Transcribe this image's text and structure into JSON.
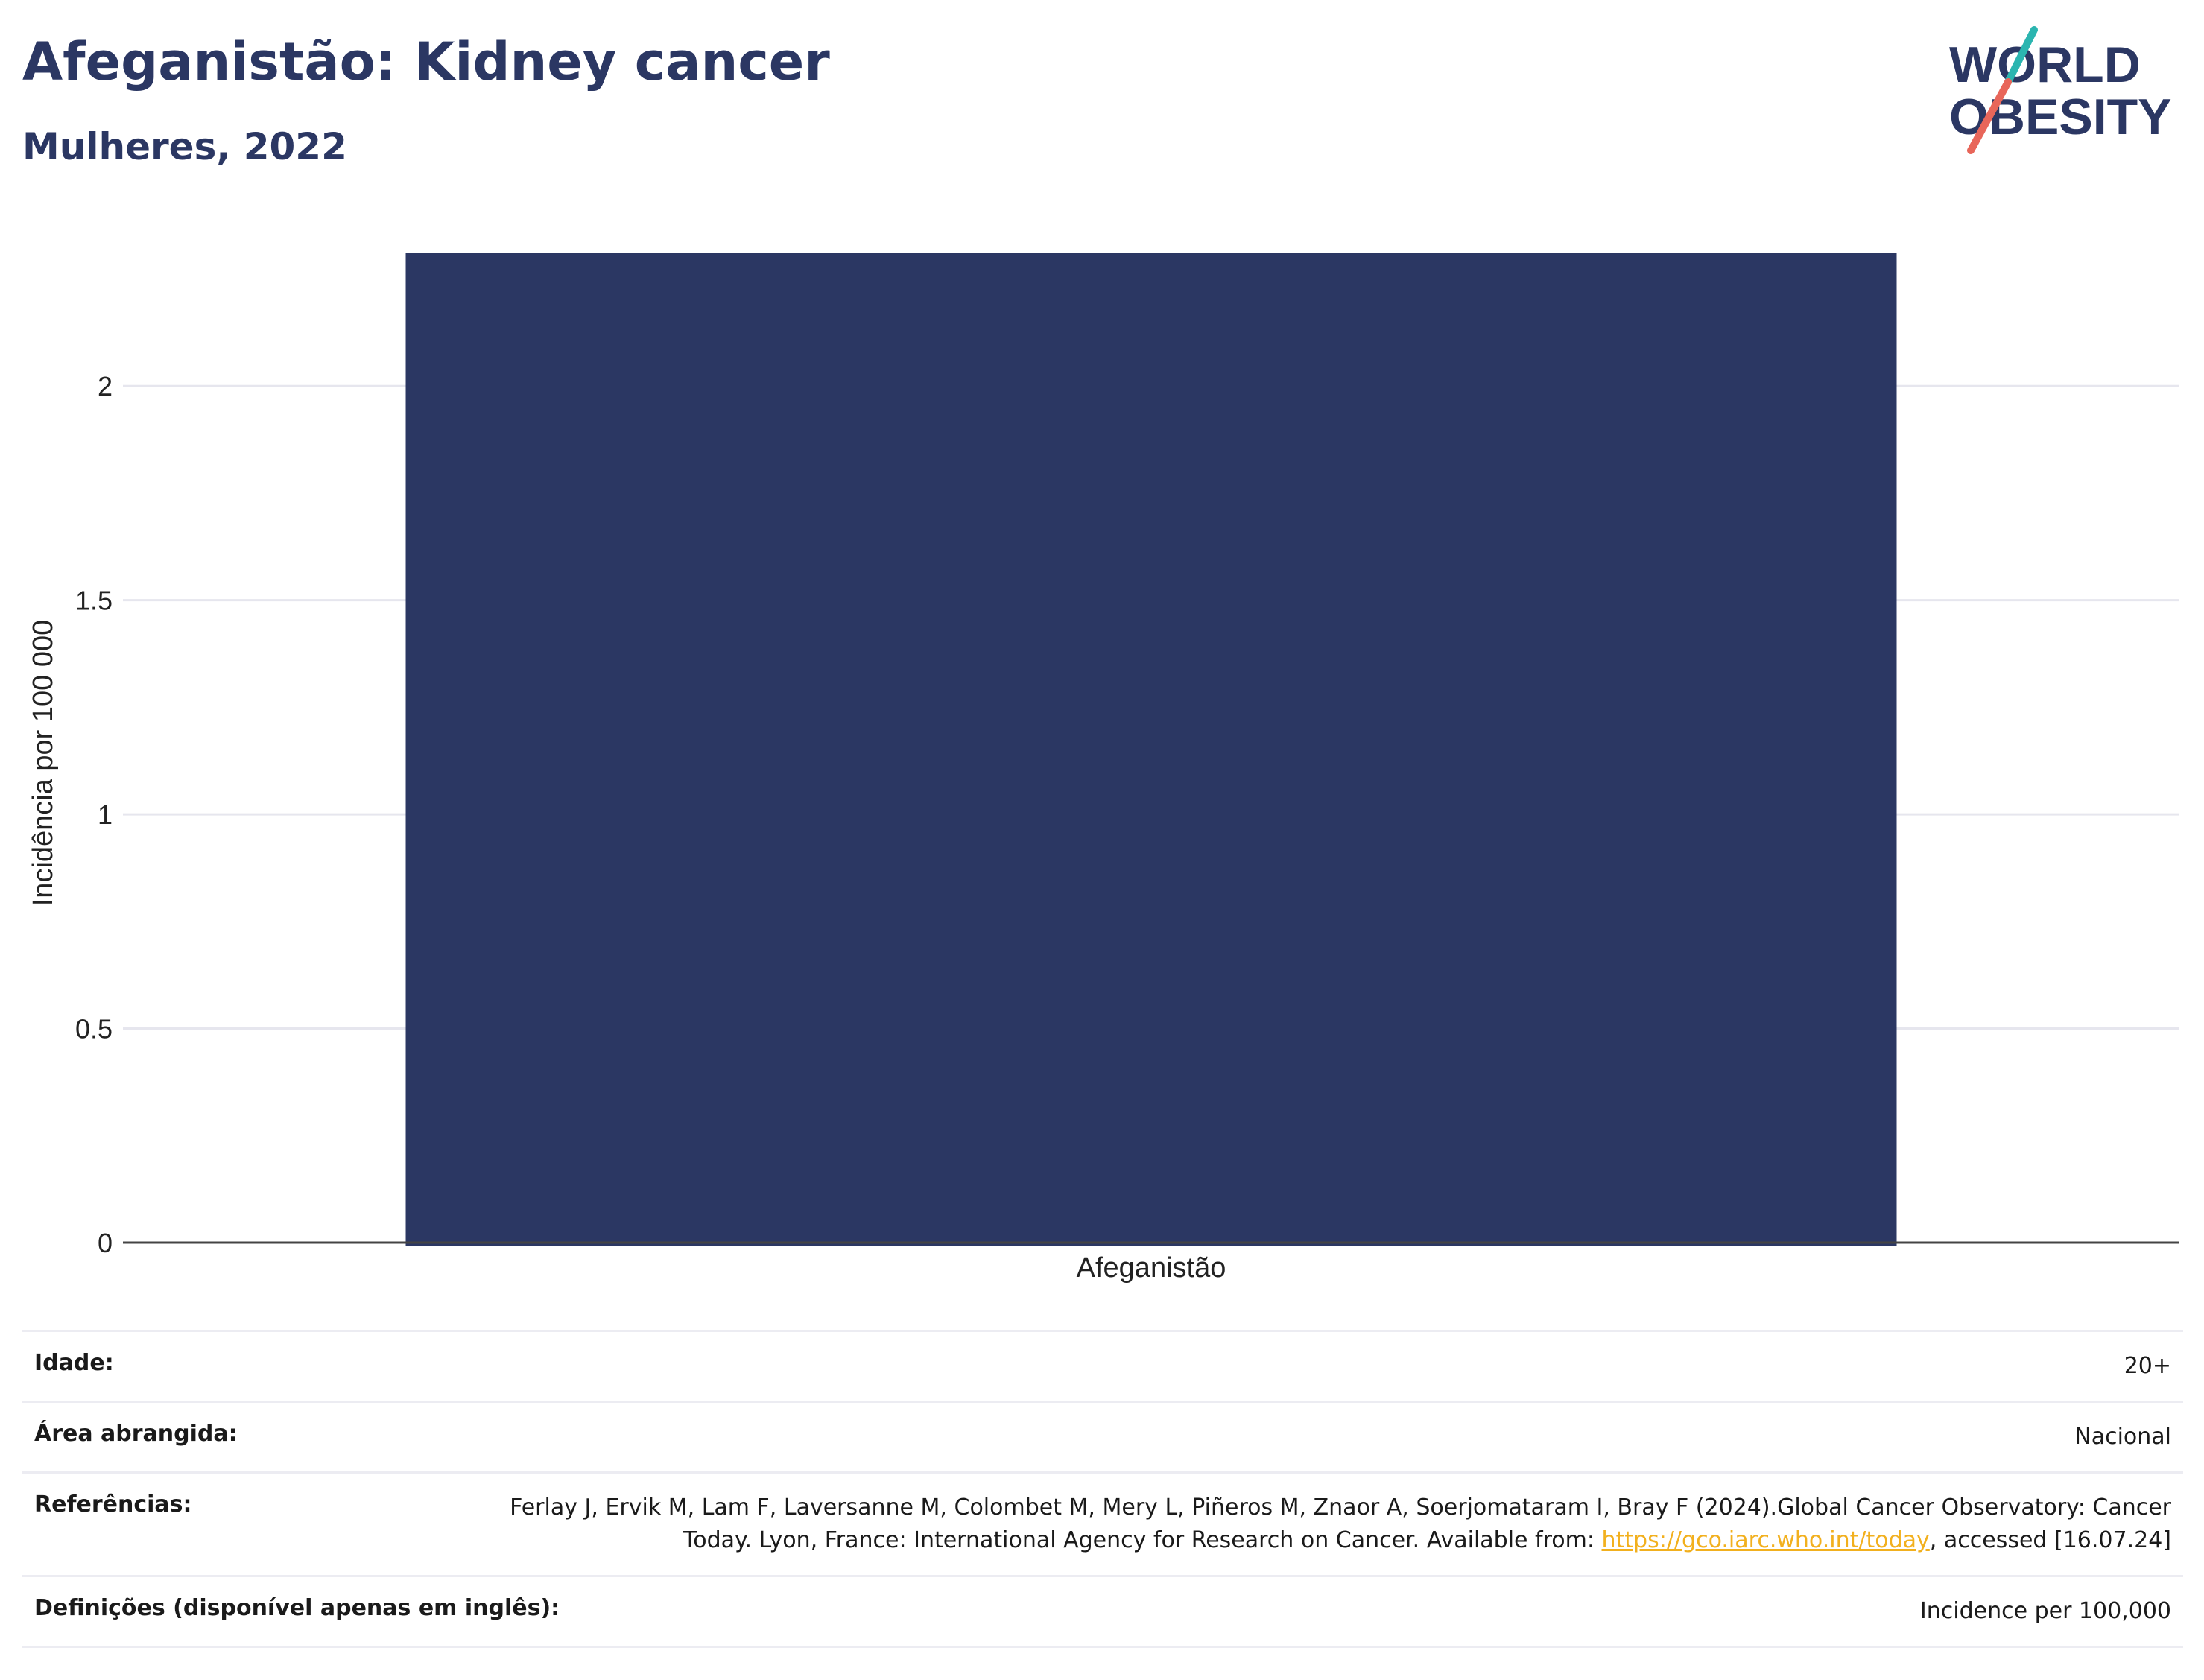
{
  "header": {
    "title": "Afeganistão: Kidney cancer",
    "subtitle": "Mulheres, 2022"
  },
  "logo": {
    "line1": "WORLD",
    "line2": "OBESITY"
  },
  "colors": {
    "bar": "#2b3763",
    "title": "#2b3763",
    "link": "#f2b01e",
    "grid": "#e6e6ee"
  },
  "chart_data": {
    "type": "bar",
    "categories": [
      "Afeganistão"
    ],
    "values": [
      2.31
    ],
    "ylabel": "Incidência por 100 000",
    "ylim": [
      0,
      2.31
    ],
    "yticks": [
      0,
      0.5,
      1,
      1.5,
      2
    ],
    "ytick_labels": [
      "0",
      "0.5",
      "1",
      "1.5",
      "2"
    ],
    "grid": true
  },
  "footer": {
    "age_label": "Idade:",
    "age_value": "20+",
    "area_label": "Área abrangida:",
    "area_value": "Nacional",
    "refs_label": "Referências:",
    "refs_text_1": "Ferlay J, Ervik M, Lam F, Laversanne M, Colombet M, Mery L, Piñeros M, Znaor A, Soerjomataram I, Bray F (2024).Global Cancer Observatory: Cancer Today. Lyon, France: International Agency for Research on Cancer. Available from: ",
    "refs_link": "https://gco.iarc.who.int/today",
    "refs_text_2": ", accessed [16.07.24]",
    "defs_label": "Definições (disponível apenas em inglês):",
    "defs_value": "Incidence per 100,000"
  }
}
